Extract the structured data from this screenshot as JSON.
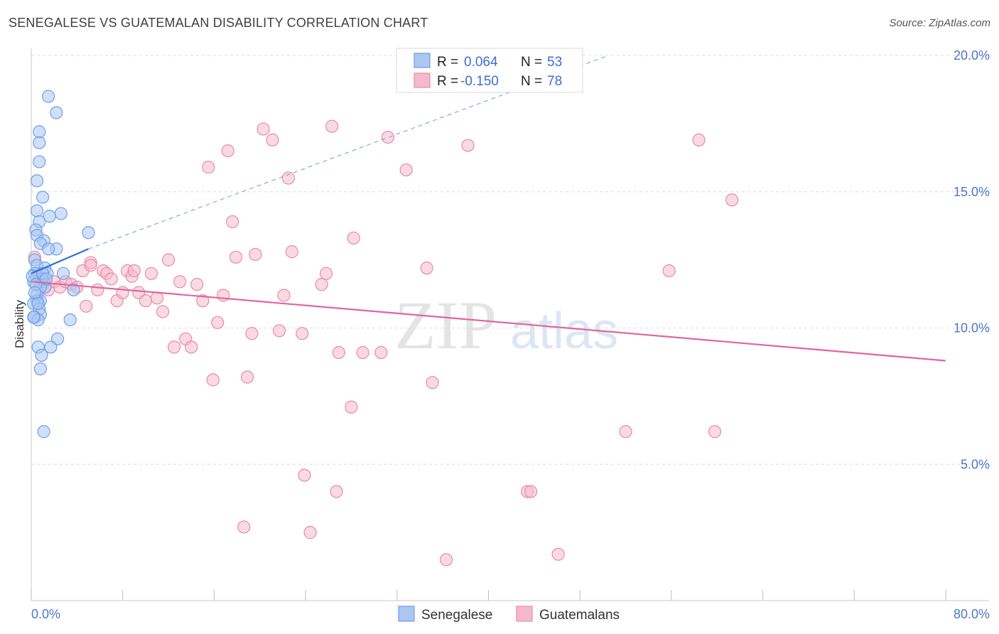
{
  "header": {
    "title": "SENEGALESE VS GUATEMALAN DISABILITY CORRELATION CHART",
    "source": "Source: ZipAtlas.com"
  },
  "legend": {
    "r_label": "R =",
    "n_label": "N =",
    "rows": [
      {
        "r": "0.064",
        "n": "53"
      },
      {
        "r": "-0.150",
        "n": "78"
      }
    ]
  },
  "watermark": {
    "part1": "ZIP",
    "part2": "atlas"
  },
  "chart_data": {
    "type": "scatter",
    "ylabel": "Disability",
    "xlim": [
      0,
      80
    ],
    "ylim": [
      0,
      20
    ],
    "x_ticks": [
      "0.0%",
      "80.0%"
    ],
    "y_ticks": [
      {
        "value": 5,
        "label": "5.0%"
      },
      {
        "value": 10,
        "label": "10.0%"
      },
      {
        "value": 15,
        "label": "15.0%"
      },
      {
        "value": 20,
        "label": "20.0%"
      }
    ],
    "grid": true,
    "series": [
      {
        "name": "Senegalese",
        "color": "#6f9ee8",
        "fill": "#aac7f2",
        "points": [
          [
            1.5,
            18.5
          ],
          [
            2.2,
            17.9
          ],
          [
            0.7,
            17.2
          ],
          [
            0.7,
            16.8
          ],
          [
            0.7,
            16.1
          ],
          [
            0.5,
            15.4
          ],
          [
            1.0,
            14.8
          ],
          [
            2.6,
            14.2
          ],
          [
            0.5,
            14.3
          ],
          [
            1.6,
            14.1
          ],
          [
            0.7,
            13.9
          ],
          [
            0.4,
            13.6
          ],
          [
            0.5,
            13.4
          ],
          [
            5.0,
            13.5
          ],
          [
            1.1,
            13.2
          ],
          [
            0.8,
            13.1
          ],
          [
            2.2,
            12.9
          ],
          [
            1.5,
            12.9
          ],
          [
            0.3,
            12.5
          ],
          [
            0.5,
            12.3
          ],
          [
            1.2,
            12.2
          ],
          [
            0.3,
            12.0
          ],
          [
            1.4,
            12.0
          ],
          [
            2.8,
            12.0
          ],
          [
            0.5,
            11.9
          ],
          [
            0.9,
            11.8
          ],
          [
            1.1,
            11.7
          ],
          [
            0.2,
            11.7
          ],
          [
            1.2,
            11.5
          ],
          [
            0.8,
            11.5
          ],
          [
            3.7,
            11.4
          ],
          [
            0.5,
            11.2
          ],
          [
            0.8,
            11.0
          ],
          [
            0.5,
            11.0
          ],
          [
            0.2,
            10.9
          ],
          [
            0.7,
            10.7
          ],
          [
            0.8,
            10.5
          ],
          [
            0.3,
            10.4
          ],
          [
            0.6,
            10.3
          ],
          [
            3.4,
            10.3
          ],
          [
            0.2,
            10.4
          ],
          [
            2.3,
            9.6
          ],
          [
            1.7,
            9.3
          ],
          [
            0.6,
            9.3
          ],
          [
            0.9,
            9.0
          ],
          [
            0.8,
            8.5
          ],
          [
            1.1,
            6.2
          ],
          [
            0.1,
            11.9
          ],
          [
            0.4,
            11.6
          ],
          [
            1.0,
            12.0
          ],
          [
            0.6,
            10.9
          ],
          [
            0.3,
            11.3
          ],
          [
            1.3,
            11.8
          ]
        ]
      },
      {
        "name": "Guatemalans",
        "color": "#e88aa8",
        "fill": "#f5b9cc",
        "points": [
          [
            0.3,
            12.6
          ],
          [
            0.6,
            12.0
          ],
          [
            1.0,
            11.8
          ],
          [
            1.2,
            11.5
          ],
          [
            1.5,
            11.4
          ],
          [
            2.0,
            11.7
          ],
          [
            2.5,
            11.5
          ],
          [
            3.0,
            11.7
          ],
          [
            3.5,
            11.6
          ],
          [
            4.0,
            11.5
          ],
          [
            4.5,
            12.1
          ],
          [
            4.8,
            10.8
          ],
          [
            5.2,
            12.4
          ],
          [
            5.8,
            11.4
          ],
          [
            6.3,
            12.1
          ],
          [
            6.6,
            12.0
          ],
          [
            7.0,
            11.8
          ],
          [
            7.5,
            11.0
          ],
          [
            8.0,
            11.3
          ],
          [
            8.4,
            12.1
          ],
          [
            8.8,
            11.9
          ],
          [
            9.4,
            11.3
          ],
          [
            10.0,
            11.0
          ],
          [
            10.5,
            12.0
          ],
          [
            11.0,
            11.1
          ],
          [
            11.5,
            10.6
          ],
          [
            12.0,
            12.5
          ],
          [
            12.5,
            9.3
          ],
          [
            13.0,
            11.7
          ],
          [
            13.5,
            9.6
          ],
          [
            14.0,
            9.3
          ],
          [
            14.5,
            11.6
          ],
          [
            15.0,
            11.0
          ],
          [
            15.5,
            15.9
          ],
          [
            15.9,
            8.1
          ],
          [
            16.3,
            10.2
          ],
          [
            16.8,
            11.2
          ],
          [
            17.2,
            16.5
          ],
          [
            17.6,
            13.9
          ],
          [
            17.9,
            12.6
          ],
          [
            18.6,
            2.7
          ],
          [
            18.9,
            8.2
          ],
          [
            19.3,
            9.8
          ],
          [
            19.6,
            12.7
          ],
          [
            20.3,
            17.3
          ],
          [
            21.1,
            16.9
          ],
          [
            21.7,
            9.9
          ],
          [
            22.1,
            11.2
          ],
          [
            22.5,
            15.5
          ],
          [
            22.8,
            12.8
          ],
          [
            23.7,
            9.8
          ],
          [
            23.9,
            4.6
          ],
          [
            24.4,
            2.5
          ],
          [
            25.4,
            11.6
          ],
          [
            25.8,
            12.0
          ],
          [
            26.3,
            17.4
          ],
          [
            26.7,
            4.0
          ],
          [
            26.9,
            9.1
          ],
          [
            28.0,
            7.1
          ],
          [
            28.2,
            13.3
          ],
          [
            29.0,
            9.1
          ],
          [
            30.6,
            9.1
          ],
          [
            31.2,
            17.0
          ],
          [
            32.8,
            15.8
          ],
          [
            34.6,
            12.2
          ],
          [
            35.1,
            8.0
          ],
          [
            36.3,
            1.5
          ],
          [
            38.2,
            16.7
          ],
          [
            43.4,
            4.0
          ],
          [
            43.7,
            4.0
          ],
          [
            46.1,
            1.7
          ],
          [
            52.0,
            6.2
          ],
          [
            55.8,
            12.1
          ],
          [
            58.4,
            16.9
          ],
          [
            59.8,
            6.2
          ],
          [
            61.3,
            14.7
          ],
          [
            5.2,
            12.3
          ],
          [
            9.0,
            12.1
          ]
        ]
      }
    ],
    "trendlines": [
      {
        "series": "Senegalese",
        "solid": [
          [
            0,
            12.0
          ],
          [
            5.0,
            12.9
          ]
        ],
        "dashed": [
          [
            5.0,
            12.9
          ],
          [
            50.5,
            20.0
          ]
        ]
      },
      {
        "series": "Guatemalans",
        "solid": [
          [
            0,
            11.7
          ],
          [
            80,
            8.8
          ]
        ]
      }
    ]
  }
}
